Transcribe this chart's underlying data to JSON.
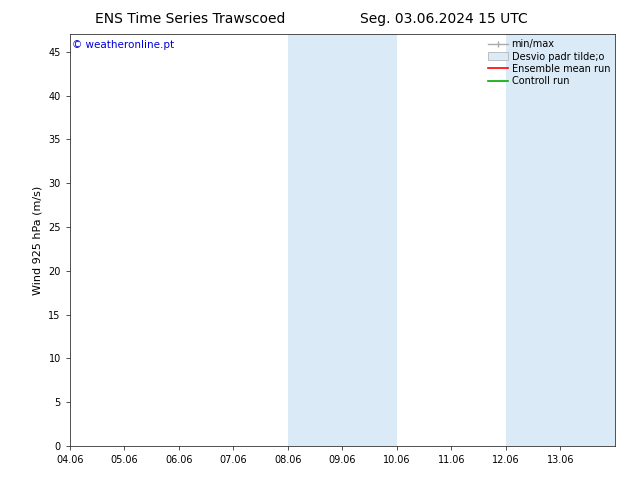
{
  "title_left": "ENS Time Series Trawscoed",
  "title_right": "Seg. 03.06.2024 15 UTC",
  "ylabel": "Wind 925 hPa (m/s)",
  "watermark": "© weatheronline.pt",
  "watermark_color": "#0000dd",
  "xlim_start": 0,
  "xlim_end": 10,
  "ylim": [
    0,
    47
  ],
  "yticks": [
    0,
    5,
    10,
    15,
    20,
    25,
    30,
    35,
    40,
    45
  ],
  "xtick_labels": [
    "04.06",
    "05.06",
    "06.06",
    "07.06",
    "08.06",
    "09.06",
    "10.06",
    "11.06",
    "12.06",
    "13.06"
  ],
  "shaded_bands": [
    {
      "xstart": 4,
      "xend": 5,
      "color": "#daeaf6"
    },
    {
      "xstart": 5,
      "xend": 6,
      "color": "#daeaf6"
    },
    {
      "xstart": 8,
      "xend": 9,
      "color": "#daeaf6"
    },
    {
      "xstart": 9,
      "xend": 10,
      "color": "#daeaf6"
    }
  ],
  "bg_color": "#ffffff",
  "plot_bg_color": "#ffffff",
  "title_fontsize": 10,
  "tick_fontsize": 7,
  "ylabel_fontsize": 8,
  "legend_fontsize": 7
}
